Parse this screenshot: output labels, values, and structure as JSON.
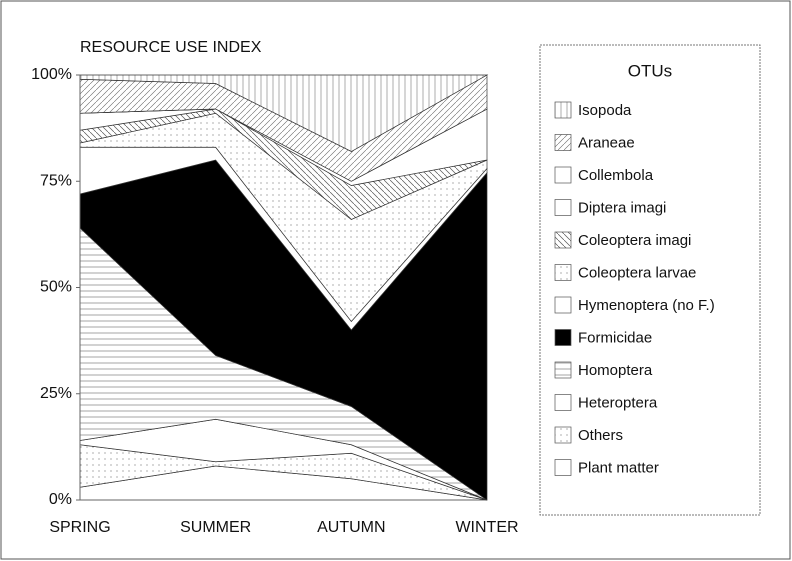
{
  "chart_data": {
    "type": "stacked_area",
    "title": "RESOURCE USE INDEX",
    "categories": [
      "SPRING",
      "SUMMER",
      "AUTUMN",
      "WINTER"
    ],
    "ylim": [
      0,
      100
    ],
    "yticks": [
      {
        "value": 0,
        "label": "0%"
      },
      {
        "value": 25,
        "label": "25%"
      },
      {
        "value": 50,
        "label": "50%"
      },
      {
        "value": 75,
        "label": "75%"
      },
      {
        "value": 100,
        "label": "100%"
      }
    ],
    "legend_title": "OTUs",
    "series": [
      {
        "name": "Plant matter",
        "color": "#ffffff",
        "values": [
          3,
          8,
          5,
          0
        ]
      },
      {
        "name": "Others",
        "color": "#ffffff",
        "values": [
          10,
          1,
          6,
          0
        ]
      },
      {
        "name": "Heteroptera",
        "color": "#ffffff",
        "values": [
          1,
          10,
          2,
          0
        ]
      },
      {
        "name": "Homoptera",
        "color": "#ffffff",
        "values": [
          50,
          15,
          9,
          0
        ]
      },
      {
        "name": "Formicidae",
        "color": "#000000",
        "values": [
          8,
          46,
          18,
          77
        ]
      },
      {
        "name": "Hymenoptera (no F.)",
        "color": "#ffffff",
        "values": [
          11,
          3,
          2,
          1
        ]
      },
      {
        "name": "Coleoptera larvae",
        "color": "#ffffff",
        "values": [
          1,
          8,
          24,
          2
        ]
      },
      {
        "name": "Coleoptera imagi",
        "color": "#ffffff",
        "values": [
          3,
          1,
          8,
          0
        ]
      },
      {
        "name": "Diptera imagi",
        "color": "#ffffff",
        "values": [
          4,
          0,
          1,
          12
        ]
      },
      {
        "name": "Collembola",
        "color": "#ffffff",
        "values": [
          0,
          0,
          0,
          0
        ]
      },
      {
        "name": "Araneae",
        "color": "#ffffff",
        "values": [
          8,
          6,
          7,
          8
        ]
      },
      {
        "name": "Isopoda",
        "color": "#ffffff",
        "values": [
          1,
          2,
          18,
          0
        ]
      }
    ]
  }
}
